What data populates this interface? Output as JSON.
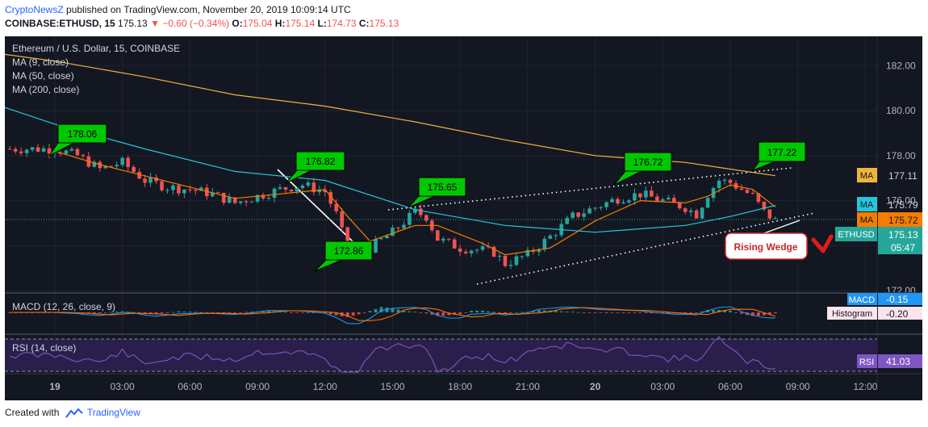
{
  "header": {
    "author": "CryptoNewsZ",
    "published": "published on TradingView.com, November 20, 2019 10:09:14 UTC",
    "symbol": "COINBASE:ETHUSD, 15",
    "last": "175.13",
    "change": "−0.60 (−0.34%)",
    "open_label": "O:",
    "open": "175.04",
    "high_label": "H:",
    "high": "175.14",
    "low_label": "L:",
    "low": "174.73",
    "close_label": "C:",
    "close": "175.13"
  },
  "legend": {
    "title": "Ethereum / U.S. Dollar, 15, COINBASE",
    "ma1": "MA (9, close)",
    "ma2": "MA (50, close)",
    "ma3": "MA (200, close)"
  },
  "indicators": {
    "macd_label": "MACD (12, 26, close, 9)",
    "rsi_label": "RSI (14, close)",
    "macd_tag": "MACD",
    "macd_value": "-0.15",
    "hist_tag": "Histogram",
    "hist_value": "-0.20",
    "rsi_tag": "RSI",
    "rsi_value": "41.03"
  },
  "price_tags": {
    "ma200_tag": "MA",
    "ma200_value": "177.11",
    "ma50_tag": "MA",
    "ma50_value": "175.79",
    "ma9_tag": "MA",
    "ma9_value": "175.72",
    "symbol_tag": "ETHUSD",
    "symbol_value": "175.13",
    "countdown": "05:47"
  },
  "annotations": {
    "callouts": [
      "178.06",
      "176.82",
      "172.86",
      "175.65",
      "176.72",
      "177.22"
    ],
    "pattern": "Rising Wedge"
  },
  "footer": {
    "created_with": "Created with",
    "brand": "TradingView"
  },
  "colors": {
    "background": "#131722",
    "up": "#26a69a",
    "down": "#ef5350",
    "ma9": "#f57c00",
    "ma50": "#26c6da",
    "ma200": "#f0b43c",
    "callout": "#00c800",
    "macd": "#2196f3",
    "signal": "#ff6d00",
    "rsi": "#7e57c2"
  },
  "chart_data": {
    "type": "line",
    "title": "Ethereum / U.S. Dollar, 15, COINBASE",
    "xlabel": "",
    "ylabel": "",
    "x_ticks": [
      "19",
      "03:00",
      "06:00",
      "09:00",
      "12:00",
      "15:00",
      "18:00",
      "21:00",
      "20",
      "03:00",
      "06:00",
      "09:00",
      "12:00"
    ],
    "y_ticks": [
      172.0,
      174.0,
      176.0,
      178.0,
      180.0,
      182.0
    ],
    "ylim": [
      171.9,
      183.3
    ],
    "close_points": [
      {
        "t": 0,
        "p": 178.3
      },
      {
        "t": 1,
        "p": 178.0
      },
      {
        "t": 2,
        "p": 177.4
      },
      {
        "t": 3,
        "p": 177.7
      },
      {
        "t": 4,
        "p": 176.9
      },
      {
        "t": 5,
        "p": 176.6
      },
      {
        "t": 6,
        "p": 176.5
      },
      {
        "t": 7,
        "p": 176.3
      },
      {
        "t": 8,
        "p": 175.9
      },
      {
        "t": 9,
        "p": 176.2
      },
      {
        "t": 10,
        "p": 176.5
      },
      {
        "t": 11,
        "p": 176.7
      },
      {
        "t": 12,
        "p": 176.4
      },
      {
        "t": 12.5,
        "p": 175.4
      },
      {
        "t": 13,
        "p": 173.8
      },
      {
        "t": 13.5,
        "p": 173.6
      },
      {
        "t": 14,
        "p": 173.9
      },
      {
        "t": 15,
        "p": 174.6
      },
      {
        "t": 16,
        "p": 175.5
      },
      {
        "t": 16.5,
        "p": 175.3
      },
      {
        "t": 17,
        "p": 174.3
      },
      {
        "t": 18,
        "p": 173.9
      },
      {
        "t": 19,
        "p": 173.8
      },
      {
        "t": 19.5,
        "p": 173.7
      },
      {
        "t": 20,
        "p": 173.2
      },
      {
        "t": 21,
        "p": 173.6
      },
      {
        "t": 22,
        "p": 174.4
      },
      {
        "t": 23,
        "p": 175.3
      },
      {
        "t": 24,
        "p": 175.7
      },
      {
        "t": 25,
        "p": 176.1
      },
      {
        "t": 26,
        "p": 176.3
      },
      {
        "t": 27,
        "p": 176.0
      },
      {
        "t": 28,
        "p": 175.7
      },
      {
        "t": 28.5,
        "p": 175.4
      },
      {
        "t": 29,
        "p": 176.3
      },
      {
        "t": 29.5,
        "p": 176.9
      },
      {
        "t": 30,
        "p": 176.8
      },
      {
        "t": 31,
        "p": 176.2
      },
      {
        "t": 31.5,
        "p": 175.5
      },
      {
        "t": 32,
        "p": 175.13
      }
    ],
    "series": [
      {
        "name": "MA (9, close)",
        "values": [
          {
            "t": 0,
            "p": 178.2
          },
          {
            "t": 2,
            "p": 177.6
          },
          {
            "t": 4,
            "p": 177.1
          },
          {
            "t": 6,
            "p": 176.6
          },
          {
            "t": 8,
            "p": 176.1
          },
          {
            "t": 10,
            "p": 176.3
          },
          {
            "t": 12,
            "p": 176.5
          },
          {
            "t": 13,
            "p": 175.3
          },
          {
            "t": 14,
            "p": 174.2
          },
          {
            "t": 16,
            "p": 174.9
          },
          {
            "t": 17,
            "p": 174.9
          },
          {
            "t": 19,
            "p": 174.1
          },
          {
            "t": 20,
            "p": 173.6
          },
          {
            "t": 22,
            "p": 173.9
          },
          {
            "t": 24,
            "p": 175.1
          },
          {
            "t": 26,
            "p": 176.0
          },
          {
            "t": 28,
            "p": 175.9
          },
          {
            "t": 29,
            "p": 176.2
          },
          {
            "t": 30,
            "p": 176.7
          },
          {
            "t": 31,
            "p": 176.5
          },
          {
            "t": 32,
            "p": 175.72
          }
        ]
      },
      {
        "name": "MA (50, close)",
        "values": [
          {
            "t": -3,
            "p": 180.4
          },
          {
            "t": 0,
            "p": 179.4
          },
          {
            "t": 4,
            "p": 178.3
          },
          {
            "t": 8,
            "p": 177.3
          },
          {
            "t": 12,
            "p": 176.9
          },
          {
            "t": 16,
            "p": 175.6
          },
          {
            "t": 20,
            "p": 174.9
          },
          {
            "t": 24,
            "p": 174.6
          },
          {
            "t": 28,
            "p": 174.9
          },
          {
            "t": 30,
            "p": 175.3
          },
          {
            "t": 32,
            "p": 175.79
          }
        ]
      },
      {
        "name": "MA (200, close)",
        "values": [
          {
            "t": -3,
            "p": 182.6
          },
          {
            "t": 0,
            "p": 182.2
          },
          {
            "t": 4,
            "p": 181.5
          },
          {
            "t": 8,
            "p": 180.7
          },
          {
            "t": 12,
            "p": 180.2
          },
          {
            "t": 16,
            "p": 179.5
          },
          {
            "t": 20,
            "p": 178.7
          },
          {
            "t": 24,
            "p": 178.0
          },
          {
            "t": 28,
            "p": 177.7
          },
          {
            "t": 32,
            "p": 177.11
          }
        ]
      }
    ]
  }
}
